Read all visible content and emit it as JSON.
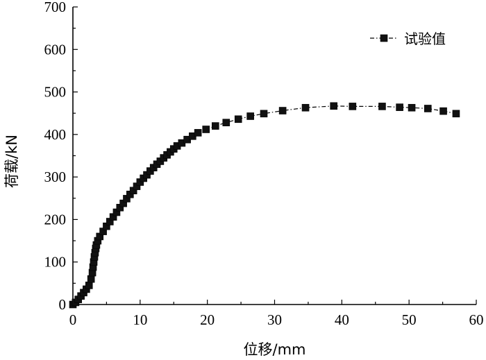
{
  "chart_data": {
    "type": "line",
    "xlabel": "位移/mm",
    "ylabel": "荷载/kN",
    "xlim": [
      0,
      60
    ],
    "ylim": [
      0,
      700
    ],
    "xticks": [
      0,
      10,
      20,
      30,
      40,
      50,
      60
    ],
    "yticks": [
      0,
      100,
      200,
      300,
      400,
      500,
      600,
      700
    ],
    "grid": false,
    "legend_position": "top-right",
    "series": [
      {
        "name": "试验值",
        "marker": "square",
        "color": "#000000",
        "x": [
          0.0,
          0.4,
          0.8,
          1.2,
          1.6,
          2.0,
          2.4,
          2.7,
          2.9,
          3.0,
          3.1,
          3.2,
          3.3,
          3.4,
          3.5,
          3.7,
          4.0,
          4.5,
          5.0,
          5.5,
          6.0,
          6.5,
          7.0,
          7.5,
          8.0,
          8.5,
          9.0,
          9.5,
          10.0,
          10.5,
          11.0,
          11.5,
          12.0,
          12.5,
          13.0,
          13.5,
          14.0,
          14.5,
          15.0,
          15.5,
          16.2,
          17.0,
          17.8,
          18.6,
          19.8,
          21.2,
          22.8,
          24.6,
          26.4,
          28.4,
          31.2,
          34.6,
          38.8,
          41.6,
          46.0,
          48.6,
          50.4,
          52.8,
          55.1,
          57.0
        ],
        "y": [
          0,
          5,
          12,
          20,
          28,
          36,
          45,
          60,
          75,
          88,
          100,
          112,
          122,
          132,
          140,
          150,
          160,
          172,
          184,
          195,
          206,
          217,
          228,
          238,
          249,
          259,
          268,
          278,
          288,
          297,
          305,
          314,
          322,
          330,
          337,
          345,
          352,
          359,
          366,
          373,
          380,
          388,
          396,
          404,
          412,
          420,
          428,
          436,
          443,
          449,
          456,
          463,
          467,
          466,
          466,
          464,
          463,
          461,
          455,
          449
        ]
      }
    ]
  }
}
